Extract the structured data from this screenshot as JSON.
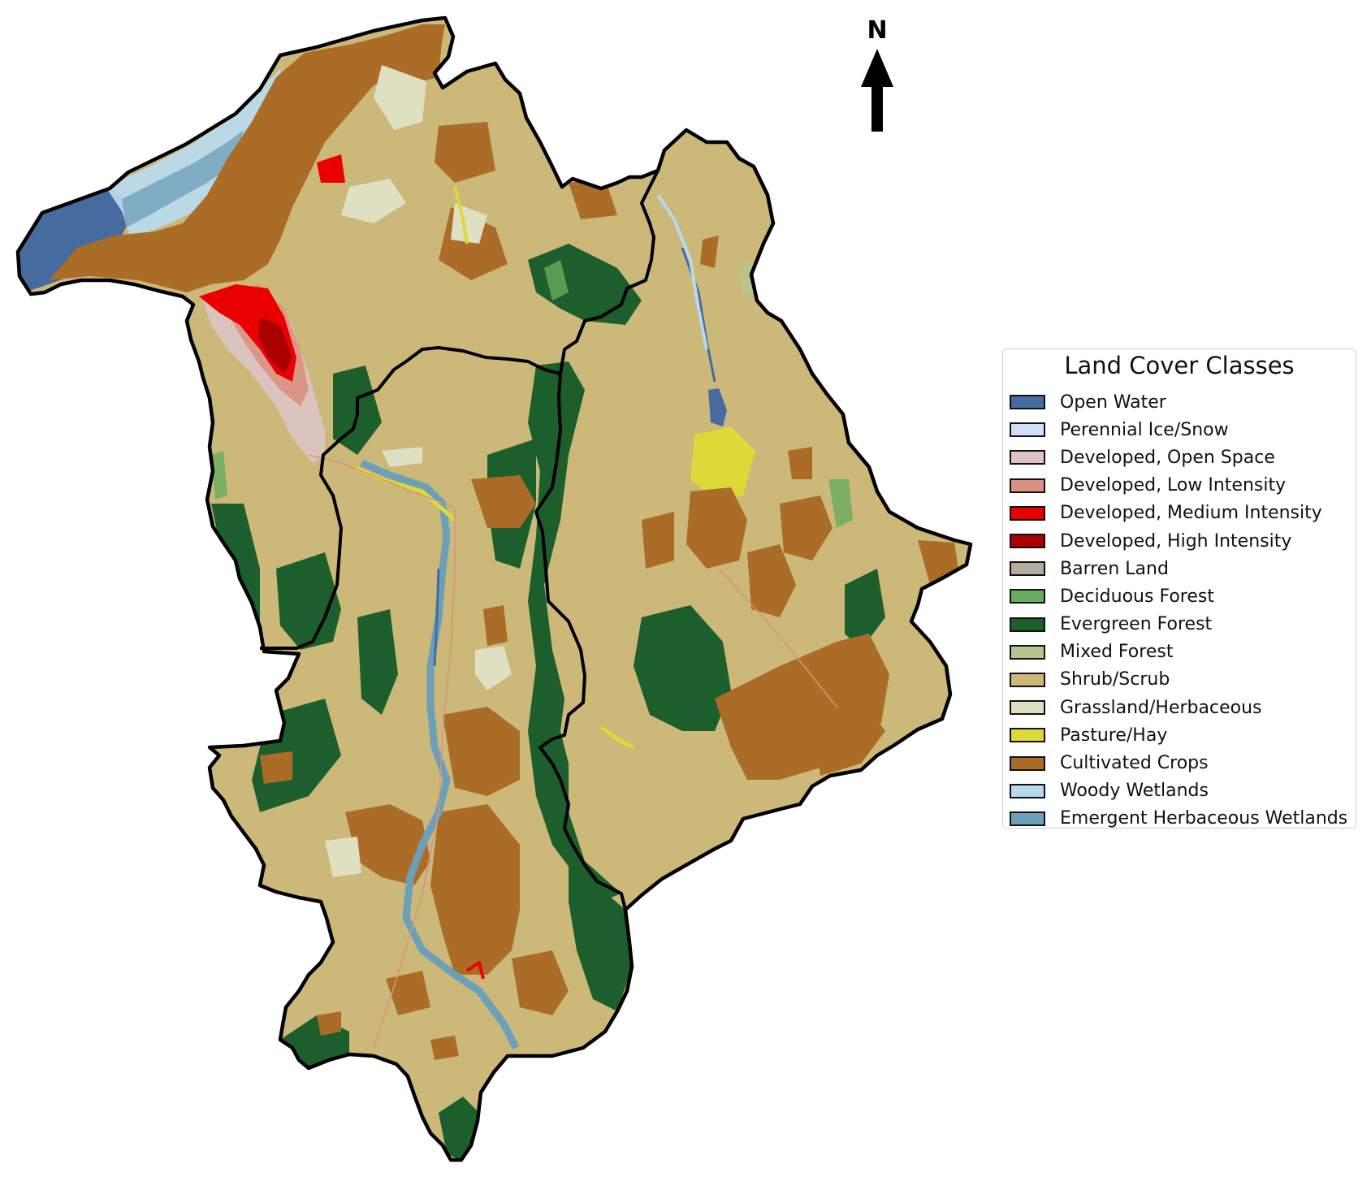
{
  "map": {
    "north_label": "N",
    "boundary_color": "#000000"
  },
  "legend": {
    "title": "Land Cover Classes",
    "items": [
      {
        "label": "Open Water",
        "color": "#466b9f"
      },
      {
        "label": "Perennial Ice/Snow",
        "color": "#d1def8"
      },
      {
        "label": "Developed, Open Space",
        "color": "#dec5c5"
      },
      {
        "label": "Developed, Low Intensity",
        "color": "#d99282"
      },
      {
        "label": "Developed, Medium Intensity",
        "color": "#eb0000"
      },
      {
        "label": "Developed, High Intensity",
        "color": "#ab0000"
      },
      {
        "label": "Barren Land",
        "color": "#b3ac9f"
      },
      {
        "label": "Deciduous Forest",
        "color": "#68ab5f"
      },
      {
        "label": "Evergreen Forest",
        "color": "#1c5f2c"
      },
      {
        "label": "Mixed Forest",
        "color": "#b5c58f"
      },
      {
        "label": "Shrub/Scrub",
        "color": "#ccb879"
      },
      {
        "label": "Grassland/Herbaceous",
        "color": "#dfdfc2"
      },
      {
        "label": "Pasture/Hay",
        "color": "#dcd939"
      },
      {
        "label": "Cultivated Crops",
        "color": "#ab6c28"
      },
      {
        "label": "Woody Wetlands",
        "color": "#b8d9eb"
      },
      {
        "label": "Emergent Herbaceous Wetlands",
        "color": "#6c9fb8"
      }
    ]
  }
}
